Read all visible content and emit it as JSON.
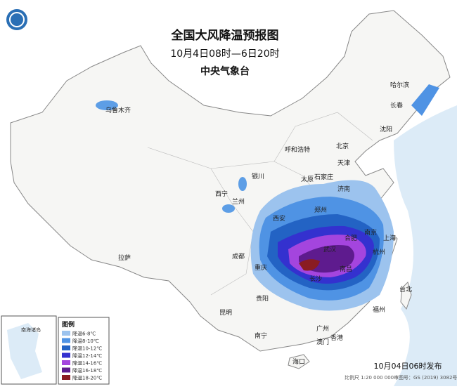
{
  "header": {
    "title": "全国大风降温预报图",
    "subtitle": "10月4日08时—6日20时",
    "issuer": "中央气象台"
  },
  "cities": [
    "乌鲁木齐",
    "哈尔滨",
    "长春",
    "沈阳",
    "呼和浩特",
    "北京",
    "天津",
    "银川",
    "太原",
    "石家庄",
    "济南",
    "西宁",
    "兰州",
    "郑州",
    "西安",
    "南京",
    "合肥",
    "上海",
    "武汉",
    "杭州",
    "成都",
    "拉萨",
    "重庆",
    "长沙",
    "南昌",
    "福州",
    "台北",
    "贵阳",
    "昆明",
    "南宁",
    "广州",
    "香港",
    "澳门",
    "海口"
  ],
  "legend": {
    "title": "图例",
    "items": [
      {
        "label": "降温6-8℃",
        "color": "#9cc3ee"
      },
      {
        "label": "降温8-10℃",
        "color": "#4f93e4"
      },
      {
        "label": "降温10-12℃",
        "color": "#2363c4"
      },
      {
        "label": "降温12-14℃",
        "color": "#3431cf"
      },
      {
        "label": "降温14-16℃",
        "color": "#a445de"
      },
      {
        "label": "降温16-18℃",
        "color": "#5e1b8e"
      },
      {
        "label": "降温18-20℃",
        "color": "#8a1c22"
      }
    ]
  },
  "inset": {
    "label": "南海诸岛"
  },
  "footer": {
    "issued": "10月04日06时发布",
    "scale": "比例尺 1:20 000 000",
    "approval": "审图号：GS (2019) 3082号"
  }
}
